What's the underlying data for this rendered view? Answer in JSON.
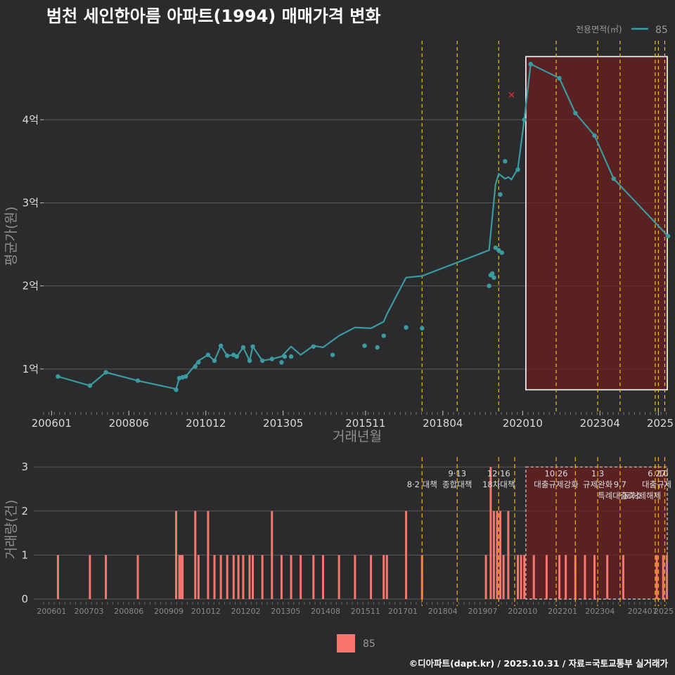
{
  "title": "범천 세인한아름 아파트(1994) 매매가격 변화",
  "caption": "©디아파트(dapt.kr) / 2025.10.31 / 자료=국토교통부 실거래가",
  "colors": {
    "background": "#2b2b2d",
    "price_line": "#3a9ba0",
    "volume_bar": "#f8766d",
    "policy_line": "#e6c800",
    "highlight_fill": "#6b1f20",
    "highlight_border": "#ffffff",
    "outlier": "#e03030"
  },
  "top_legend": {
    "title": "전용면적(㎡)",
    "label": "85"
  },
  "bottom_legend": {
    "label": "85"
  },
  "chart_data": [
    {
      "type": "line",
      "title": "범천 세인한아름 아파트(1994) 매매가격 변화",
      "xlabel": "거래년월",
      "ylabel": "평균가(원)",
      "x_range": [
        2005.75,
        2025.3
      ],
      "ylim": [
        0.55,
        4.95
      ],
      "y_unit": "억",
      "yticks": [
        1,
        2,
        3,
        4
      ],
      "ytick_labels": [
        "1억",
        "2억",
        "3억",
        "4억"
      ],
      "xtick_values": [
        2006.0,
        2008.42,
        2010.83,
        2013.25,
        2015.83,
        2018.25,
        2020.75,
        2023.17,
        2025.0
      ],
      "xtick_labels": [
        "200601",
        "200806",
        "201012",
        "201305",
        "201511",
        "201804",
        "202010",
        "202304",
        "2025"
      ],
      "series": [
        {
          "name": "85",
          "x": [
            2006.2,
            2007.2,
            2007.7,
            2008.7,
            2009.9,
            2010.0,
            2010.1,
            2010.2,
            2010.5,
            2010.6,
            2010.9,
            2011.1,
            2011.3,
            2011.5,
            2011.7,
            2011.8,
            2012.0,
            2012.2,
            2012.3,
            2012.6,
            2012.9,
            2013.2,
            2013.5,
            2013.8,
            2014.2,
            2014.5,
            2015.0,
            2015.5,
            2016.0,
            2016.4,
            2016.5,
            2017.1,
            2017.6,
            2019.7,
            2019.9,
            2020.0,
            2020.2,
            2020.3,
            2020.4,
            2020.6,
            2020.8,
            2021.0,
            2021.9,
            2022.4,
            2023.0,
            2023.6,
            2025.3
          ],
          "values": [
            0.91,
            0.8,
            0.96,
            0.86,
            0.76,
            0.89,
            0.9,
            0.91,
            1.05,
            1.1,
            1.17,
            1.1,
            1.28,
            1.16,
            1.17,
            1.15,
            1.26,
            1.1,
            1.27,
            1.1,
            1.12,
            1.15,
            1.27,
            1.17,
            1.28,
            1.26,
            1.4,
            1.5,
            1.49,
            1.57,
            1.66,
            2.1,
            2.12,
            2.43,
            3.22,
            3.35,
            3.29,
            3.31,
            3.28,
            3.41,
            4.0,
            4.67,
            4.5,
            4.08,
            3.81,
            3.29,
            2.6
          ]
        }
      ],
      "points": {
        "x": [
          2006.2,
          2007.2,
          2007.7,
          2008.7,
          2009.9,
          2010.0,
          2010.1,
          2010.2,
          2010.5,
          2010.6,
          2010.9,
          2011.1,
          2011.3,
          2011.5,
          2011.7,
          2011.8,
          2012.0,
          2012.2,
          2012.3,
          2012.6,
          2012.9,
          2013.2,
          2013.3,
          2013.5,
          2014.2,
          2014.8,
          2015.8,
          2016.2,
          2016.4,
          2017.1,
          2017.6,
          2019.7,
          2019.75,
          2019.8,
          2019.85,
          2019.9,
          2020.0,
          2020.05,
          2020.1,
          2020.2,
          2020.6,
          2020.8,
          2021.0,
          2021.9,
          2022.4,
          2023.0,
          2023.6,
          2025.3
        ],
        "values": [
          0.91,
          0.8,
          0.96,
          0.86,
          0.75,
          0.89,
          0.9,
          0.91,
          1.03,
          1.08,
          1.17,
          1.1,
          1.28,
          1.16,
          1.17,
          1.15,
          1.26,
          1.1,
          1.27,
          1.1,
          1.12,
          1.08,
          1.15,
          1.15,
          1.27,
          1.17,
          1.28,
          1.26,
          1.4,
          1.5,
          1.49,
          2.0,
          2.13,
          2.15,
          2.1,
          2.46,
          2.43,
          3.1,
          2.4,
          3.5,
          3.4,
          4.0,
          4.67,
          4.5,
          4.08,
          3.81,
          3.29,
          2.6
        ]
      },
      "outliers": [
        {
          "x": 2020.4,
          "value": 4.3
        }
      ],
      "policy_lines": [
        2017.6,
        2018.7,
        2020.0,
        2021.8,
        2023.1,
        2023.8,
        2024.9,
        2025.0,
        2025.2
      ],
      "highlight_range": {
        "x": [
          2020.85,
          2025.3
        ],
        "y": [
          0.75,
          4.76
        ]
      }
    },
    {
      "type": "bar",
      "xlabel": "",
      "ylabel": "거래량(건)",
      "x_range": [
        2005.75,
        2025.3
      ],
      "ylim": [
        0,
        3
      ],
      "yticks": [
        0,
        1,
        2,
        3
      ],
      "ytick_labels": [
        "0",
        "1",
        "2",
        "3"
      ],
      "xtick_values": [
        2006.0,
        2007.17,
        2008.42,
        2009.67,
        2010.83,
        2012.08,
        2013.33,
        2014.58,
        2015.83,
        2017.0,
        2018.25,
        2019.5,
        2020.75,
        2022.0,
        2023.17,
        2024.5,
        2025.0
      ],
      "xtick_labels": [
        "200601",
        "200703",
        "200806",
        "200909",
        "201012",
        "201202",
        "201305",
        "201408",
        "201511",
        "201701",
        "201804",
        "201907",
        "202010",
        "202201",
        "202304",
        "202407",
        "2025"
      ],
      "series": [
        {
          "name": "85",
          "x": [
            2006.2,
            2007.2,
            2007.7,
            2008.7,
            2009.9,
            2010.0,
            2010.05,
            2010.1,
            2010.5,
            2010.6,
            2010.9,
            2011.1,
            2011.3,
            2011.5,
            2011.7,
            2011.85,
            2012.0,
            2012.2,
            2012.3,
            2012.6,
            2012.9,
            2013.2,
            2013.5,
            2013.8,
            2014.2,
            2014.5,
            2015.0,
            2015.5,
            2016.0,
            2016.4,
            2016.5,
            2017.1,
            2017.6,
            2019.6,
            2019.75,
            2019.85,
            2019.95,
            2020.05,
            2020.15,
            2020.3,
            2020.6,
            2020.7,
            2020.8,
            2021.1,
            2021.5,
            2021.9,
            2022.1,
            2022.4,
            2022.7,
            2023.0,
            2023.4,
            2023.9,
            2024.95,
            2025.15,
            2025.3
          ],
          "values": [
            1,
            1,
            1,
            1,
            2,
            1,
            1,
            1,
            2,
            1,
            2,
            1,
            1,
            1,
            1,
            1,
            1,
            1,
            1,
            1,
            2,
            1,
            1,
            1,
            1,
            1,
            1,
            1,
            1,
            1,
            1,
            2,
            1,
            1,
            3,
            2,
            2,
            2,
            1,
            2,
            1,
            1,
            1,
            1,
            1,
            1,
            1,
            1,
            1,
            1,
            1,
            1,
            1,
            1,
            1
          ]
        }
      ],
      "policy_lines": [
        2017.6,
        2018.7,
        2020.0,
        2020.5,
        2021.8,
        2022.4,
        2023.1,
        2023.8,
        2024.9,
        2025.0,
        2025.2
      ],
      "highlight_range": {
        "x": [
          2020.85,
          2025.3
        ],
        "y": [
          0,
          3
        ]
      },
      "annotations": [
        {
          "x": 2017.6,
          "y": 2.6,
          "text": "8·2 대책"
        },
        {
          "x": 2018.7,
          "y": 2.85,
          "text": "9·13"
        },
        {
          "x": 2018.7,
          "y": 2.6,
          "text": "종합대책"
        },
        {
          "x": 2020.0,
          "y": 2.85,
          "text": "12·16"
        },
        {
          "x": 2020.0,
          "y": 2.6,
          "text": "18차대책"
        },
        {
          "x": 2021.8,
          "y": 2.85,
          "text": "10.26"
        },
        {
          "x": 2021.8,
          "y": 2.6,
          "text": "대출규제강화"
        },
        {
          "x": 2023.1,
          "y": 2.85,
          "text": "1.3"
        },
        {
          "x": 2023.1,
          "y": 2.6,
          "text": "규제완화"
        },
        {
          "x": 2023.8,
          "y": 2.6,
          "text": "9.7"
        },
        {
          "x": 2023.8,
          "y": 2.35,
          "text": "특례대출축소"
        },
        {
          "x": 2024.5,
          "y": 2.35,
          "text": "토허제해제"
        },
        {
          "x": 2024.95,
          "y": 2.85,
          "text": "6.27"
        },
        {
          "x": 2024.95,
          "y": 2.6,
          "text": "대출규제"
        },
        {
          "x": 2025.15,
          "y": 2.85,
          "text": "10"
        }
      ]
    }
  ]
}
